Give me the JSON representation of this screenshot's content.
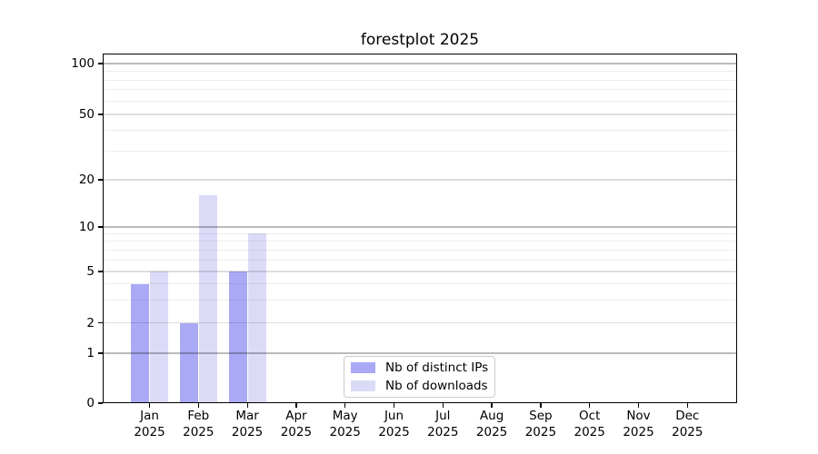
{
  "chart_data": {
    "type": "bar",
    "title": "forestplot 2025",
    "categories": [
      "Jan",
      "Feb",
      "Mar",
      "Apr",
      "May",
      "Jun",
      "Jul",
      "Aug",
      "Sep",
      "Oct",
      "Nov",
      "Dec"
    ],
    "x_tick_year": "2025",
    "series": [
      {
        "name": "Nb of distinct IPs",
        "color": "#a9a9f6",
        "values": [
          4,
          2,
          5,
          0,
          0,
          0,
          0,
          0,
          0,
          0,
          0,
          0
        ]
      },
      {
        "name": "Nb of downloads",
        "color": "#dbdbf8",
        "values": [
          5,
          16,
          9,
          0,
          0,
          0,
          0,
          0,
          0,
          0,
          0,
          0
        ]
      }
    ],
    "y_axis": {
      "scale": "log-like",
      "tick_labels": [
        "0",
        "1",
        "2",
        "5",
        "10",
        "20",
        "50",
        "100"
      ],
      "tick_values": [
        0,
        1,
        2,
        5,
        10,
        20,
        50,
        100
      ],
      "minor_gridline_values": [
        3,
        4,
        6,
        7,
        8,
        9,
        30,
        40,
        60,
        70,
        80,
        90
      ],
      "ylim": [
        0,
        115
      ]
    },
    "grid": true,
    "legend_position": "lower center"
  },
  "colors": {
    "background": "#ffffff",
    "axis": "#000000",
    "text": "#000000",
    "legend_border": "#cccccc",
    "grid_decade": "rgba(0,0,0,0.27)",
    "grid_labeled": "rgba(0,0,0,0.13)",
    "grid_minor": "rgba(0,0,0,0.07)"
  }
}
